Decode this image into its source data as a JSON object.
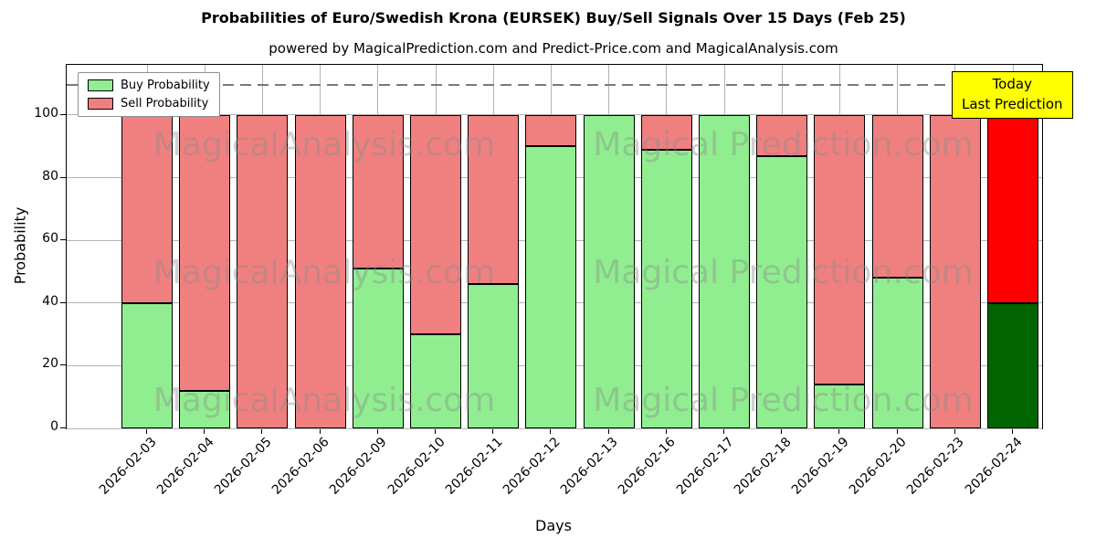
{
  "figure": {
    "subtitle": "powered by MagicalPrediction.com and Predict-Price.com and MagicalAnalysis.com",
    "annotation": {
      "line1": "Today",
      "line2": "Last Prediction",
      "bg": "#ffff00"
    },
    "watermark": {
      "left": "MagicalAnalysis.com",
      "right": "Magical Prediction.com"
    }
  },
  "chart_data": {
    "type": "bar",
    "stacked": true,
    "title": "Probabilities of Euro/Swedish Krona (EURSEK) Buy/Sell Signals Over 15 Days (Feb 25)",
    "xlabel": "Days",
    "ylabel": "Probability",
    "categories": [
      "2026-02-03",
      "2026-02-04",
      "2026-02-05",
      "2026-02-06",
      "2026-02-09",
      "2026-02-10",
      "2026-02-11",
      "2026-02-12",
      "2026-02-13",
      "2026-02-16",
      "2026-02-17",
      "2026-02-18",
      "2026-02-19",
      "2026-02-20",
      "2026-02-23",
      "2026-02-24"
    ],
    "series": [
      {
        "name": "Buy Probability",
        "color": "#90EE90",
        "values": [
          40,
          12,
          0,
          0,
          51,
          30,
          46,
          90,
          100,
          89,
          100,
          87,
          14,
          48,
          0,
          40
        ]
      },
      {
        "name": "Sell Probability",
        "color": "#F08080",
        "values": [
          60,
          88,
          100,
          100,
          49,
          70,
          54,
          10,
          0,
          11,
          0,
          13,
          86,
          52,
          100,
          60
        ]
      }
    ],
    "last_bar_colors": {
      "buy": "#006400",
      "sell": "#FF0000"
    },
    "bar_edge_color": "#000000",
    "yticks": [
      0,
      20,
      40,
      60,
      80,
      100
    ],
    "ylim": [
      0,
      116
    ],
    "dashed_line_y": 110,
    "grid": true,
    "legend_position": "upper left"
  }
}
